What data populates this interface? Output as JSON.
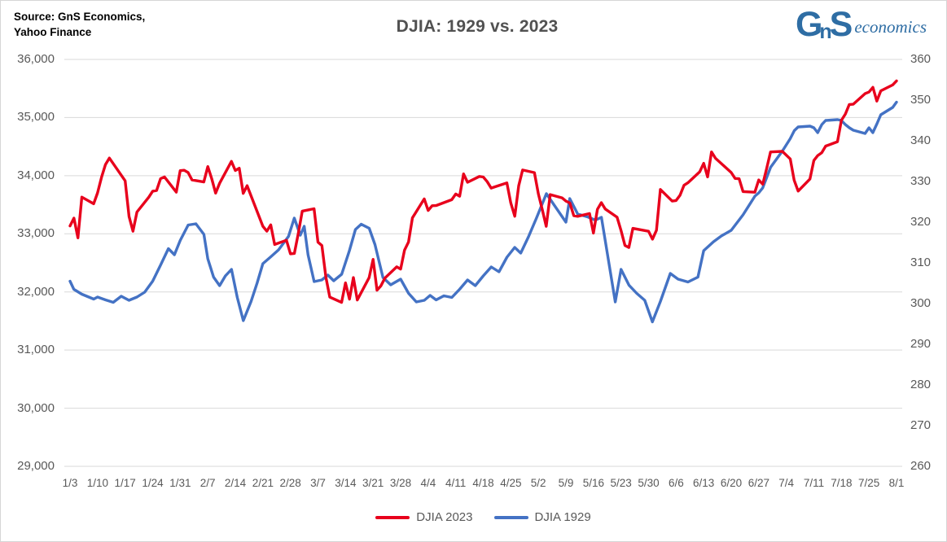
{
  "header": {
    "source_line1": "Source: GnS Economics,",
    "source_line2": "Yahoo Finance",
    "title": "DJIA: 1929 vs. 2023",
    "logo": {
      "g": "G",
      "n": "n",
      "s": "S",
      "word": "economics",
      "color": "#2e6da4"
    }
  },
  "colors": {
    "red_series": "#e8001c",
    "blue_series": "#4472c4",
    "gridline": "#d9d9d9",
    "axis_text": "#595959",
    "title_text": "#515151"
  },
  "chart_data": {
    "type": "line",
    "title": "DJIA: 1929 vs. 2023",
    "grid": "horizontal",
    "x_axis": {
      "tick_labels": [
        "1/3",
        "1/10",
        "1/17",
        "1/24",
        "1/31",
        "2/7",
        "2/14",
        "2/21",
        "2/28",
        "3/7",
        "3/14",
        "3/21",
        "3/28",
        "4/4",
        "4/11",
        "4/18",
        "4/25",
        "5/2",
        "5/9",
        "5/16",
        "5/23",
        "5/30",
        "6/6",
        "6/13",
        "6/20",
        "6/27",
        "7/4",
        "7/11",
        "7/18",
        "7/25",
        "8/1"
      ],
      "units": "weekly ticks, Jan 3 through Aug 1"
    },
    "y_axis_left": {
      "min": 29000,
      "max": 36000,
      "step": 1000,
      "tick_labels": [
        "36,000",
        "35,000",
        "34,000",
        "33,000",
        "32,000",
        "31,000",
        "30,000",
        "29,000"
      ],
      "series": "DJIA 2023"
    },
    "y_axis_right": {
      "min": 260,
      "max": 360,
      "step": 10,
      "tick_labels": [
        "360",
        "350",
        "340",
        "330",
        "320",
        "310",
        "300",
        "290",
        "280",
        "270",
        "260"
      ],
      "series": "DJIA 1929"
    },
    "legend": {
      "position": "bottom-center",
      "entries": [
        {
          "label": "DJIA 2023",
          "color": "#e8001c"
        },
        {
          "label": "DJIA 1929",
          "color": "#4472c4"
        }
      ]
    },
    "series": [
      {
        "name": "DJIA 2023",
        "axis": "left",
        "color": "#e8001c",
        "dates_2023": [
          "1/3",
          "1/4",
          "1/5",
          "1/6",
          "1/9",
          "1/10",
          "1/11",
          "1/12",
          "1/13",
          "1/17",
          "1/18",
          "1/19",
          "1/20",
          "1/23",
          "1/24",
          "1/25",
          "1/26",
          "1/27",
          "1/30",
          "1/31",
          "2/1",
          "2/2",
          "2/3",
          "2/6",
          "2/7",
          "2/8",
          "2/9",
          "2/10",
          "2/13",
          "2/14",
          "2/15",
          "2/16",
          "2/17",
          "2/21",
          "2/22",
          "2/23",
          "2/24",
          "2/27",
          "2/28",
          "3/1",
          "3/2",
          "3/3",
          "3/6",
          "3/7",
          "3/8",
          "3/9",
          "3/10",
          "3/13",
          "3/14",
          "3/15",
          "3/16",
          "3/17",
          "3/20",
          "3/21",
          "3/22",
          "3/23",
          "3/24",
          "3/27",
          "3/28",
          "3/29",
          "3/30",
          "3/31",
          "4/3",
          "4/4",
          "4/5",
          "4/6",
          "4/10",
          "4/11",
          "4/12",
          "4/13",
          "4/14",
          "4/17",
          "4/18",
          "4/19",
          "4/20",
          "4/21",
          "4/24",
          "4/25",
          "4/26",
          "4/27",
          "4/28",
          "5/1",
          "5/2",
          "5/3",
          "5/4",
          "5/5",
          "5/8",
          "5/9",
          "5/10",
          "5/11",
          "5/12",
          "5/15",
          "5/16",
          "5/17",
          "5/18",
          "5/19",
          "5/22",
          "5/23",
          "5/24",
          "5/25",
          "5/26",
          "5/30",
          "5/31",
          "6/1",
          "6/2",
          "6/5",
          "6/6",
          "6/7",
          "6/8",
          "6/9",
          "6/12",
          "6/13",
          "6/14",
          "6/15",
          "6/16",
          "6/20",
          "6/21",
          "6/22",
          "6/23",
          "6/26",
          "6/27",
          "6/28",
          "6/29",
          "6/30",
          "7/3",
          "7/5",
          "7/6",
          "7/7",
          "7/10",
          "7/11",
          "7/12",
          "7/13",
          "7/14",
          "7/17",
          "7/18",
          "7/19",
          "7/20",
          "7/21",
          "7/24",
          "7/25",
          "7/26",
          "7/27",
          "7/28",
          "7/31",
          "8/1"
        ],
        "values": [
          33136,
          33270,
          32930,
          33631,
          33517,
          33704,
          33973,
          34190,
          34303,
          33911,
          33297,
          33045,
          33375,
          33630,
          33734,
          33744,
          33949,
          33978,
          33717,
          34086,
          34093,
          34054,
          33926,
          33891,
          34156,
          33949,
          33700,
          33869,
          34246,
          34089,
          34128,
          33696,
          33827,
          33130,
          33045,
          33154,
          32817,
          32889,
          32656,
          32662,
          33003,
          33391,
          33431,
          32856,
          32798,
          32255,
          31910,
          31819,
          32155,
          31875,
          32247,
          31862,
          32245,
          32560,
          32030,
          32105,
          32238,
          32432,
          32394,
          32718,
          32859,
          33274,
          33601,
          33402,
          33483,
          33485,
          33586,
          33685,
          33646,
          34030,
          33886,
          33987,
          33977,
          33897,
          33786,
          33809,
          33875,
          33531,
          33302,
          33826,
          34098,
          34052,
          33685,
          33414,
          33128,
          33674,
          33619,
          33562,
          33531,
          33310,
          33301,
          33349,
          33012,
          33421,
          33536,
          33427,
          33286,
          33056,
          32800,
          32765,
          33093,
          33043,
          32908,
          33062,
          33763,
          33562,
          33573,
          33665,
          33834,
          33877,
          34066,
          34212,
          33979,
          34408,
          34299,
          34054,
          33952,
          33947,
          33727,
          33715,
          33926,
          33852,
          34122,
          34408,
          34418,
          34288,
          33922,
          33735,
          33944,
          34261,
          34347,
          34395,
          34509,
          34585,
          34951,
          35061,
          35225,
          35228,
          35411,
          35438,
          35520,
          35283,
          35459,
          35560,
          35630
        ]
      },
      {
        "name": "DJIA 1929",
        "axis": "right",
        "color": "#4472c4",
        "points_week_units": [
          [
            0,
            305.5
          ],
          [
            0.14,
            303.5
          ],
          [
            0.43,
            302.3
          ],
          [
            0.86,
            301.1
          ],
          [
            1,
            301.6
          ],
          [
            1.29,
            300.9
          ],
          [
            1.57,
            300.3
          ],
          [
            1.86,
            301.8
          ],
          [
            2.14,
            300.8
          ],
          [
            2.43,
            301.6
          ],
          [
            2.71,
            302.8
          ],
          [
            3,
            305.5
          ],
          [
            3.29,
            309.5
          ],
          [
            3.57,
            313.5
          ],
          [
            3.79,
            312
          ],
          [
            4,
            315.5
          ],
          [
            4.29,
            319.3
          ],
          [
            4.57,
            319.6
          ],
          [
            4.86,
            317
          ],
          [
            5,
            311
          ],
          [
            5.21,
            306.5
          ],
          [
            5.43,
            304.4
          ],
          [
            5.64,
            306.8
          ],
          [
            5.86,
            308.4
          ],
          [
            6.07,
            301.5
          ],
          [
            6.29,
            295.8
          ],
          [
            6.57,
            300.5
          ],
          [
            6.79,
            305
          ],
          [
            7,
            309.8
          ],
          [
            7.29,
            311.5
          ],
          [
            7.57,
            313.2
          ],
          [
            7.93,
            316.5
          ],
          [
            8.14,
            321
          ],
          [
            8.36,
            316.8
          ],
          [
            8.5,
            319
          ],
          [
            8.64,
            312
          ],
          [
            8.86,
            305.4
          ],
          [
            9.14,
            305.8
          ],
          [
            9.36,
            307
          ],
          [
            9.57,
            305.6
          ],
          [
            9.86,
            307.2
          ],
          [
            10.14,
            313
          ],
          [
            10.36,
            318.2
          ],
          [
            10.57,
            319.5
          ],
          [
            10.86,
            318.5
          ],
          [
            11.07,
            314.5
          ],
          [
            11.36,
            306.4
          ],
          [
            11.64,
            304.6
          ],
          [
            12,
            306
          ],
          [
            12.29,
            302.5
          ],
          [
            12.57,
            300.4
          ],
          [
            12.86,
            300.8
          ],
          [
            13.07,
            302
          ],
          [
            13.29,
            300.9
          ],
          [
            13.57,
            301.9
          ],
          [
            13.86,
            301.5
          ],
          [
            14.14,
            303.5
          ],
          [
            14.43,
            305.8
          ],
          [
            14.71,
            304.4
          ],
          [
            15,
            306.8
          ],
          [
            15.29,
            309
          ],
          [
            15.57,
            307.8
          ],
          [
            15.86,
            311.4
          ],
          [
            16.14,
            313.8
          ],
          [
            16.36,
            312.4
          ],
          [
            16.64,
            316.4
          ],
          [
            16.93,
            321
          ],
          [
            17.29,
            327
          ],
          [
            18,
            320
          ],
          [
            18.14,
            325.8
          ],
          [
            18.43,
            322
          ],
          [
            18.79,
            321.3
          ],
          [
            19.07,
            320.5
          ],
          [
            19.29,
            321.2
          ],
          [
            19.79,
            300.4
          ],
          [
            20,
            308.4
          ],
          [
            20.29,
            304.5
          ],
          [
            20.57,
            302.5
          ],
          [
            20.86,
            300.8
          ],
          [
            21.14,
            295.5
          ],
          [
            21.43,
            300.5
          ],
          [
            21.79,
            307.4
          ],
          [
            22.07,
            306
          ],
          [
            22.43,
            305.3
          ],
          [
            22.79,
            306.5
          ],
          [
            23,
            313
          ],
          [
            23.36,
            315.2
          ],
          [
            23.64,
            316.6
          ],
          [
            24,
            318
          ],
          [
            24.43,
            321.8
          ],
          [
            24.86,
            326.4
          ],
          [
            25,
            327.2
          ],
          [
            25.14,
            328.4
          ],
          [
            25.29,
            331
          ],
          [
            25.43,
            333.5
          ],
          [
            25.86,
            337.5
          ],
          [
            26.14,
            340.5
          ],
          [
            26.29,
            342.5
          ],
          [
            26.43,
            343.4
          ],
          [
            26.86,
            343.6
          ],
          [
            27,
            343.2
          ],
          [
            27.14,
            342
          ],
          [
            27.29,
            344
          ],
          [
            27.43,
            345
          ],
          [
            27.86,
            345.2
          ],
          [
            28,
            345
          ],
          [
            28.14,
            344
          ],
          [
            28.29,
            343.2
          ],
          [
            28.43,
            342.6
          ],
          [
            28.86,
            341.8
          ],
          [
            29,
            343.2
          ],
          [
            29.14,
            342
          ],
          [
            29.29,
            344.2
          ],
          [
            29.43,
            346.4
          ],
          [
            29.86,
            348.2
          ],
          [
            30,
            349.5
          ]
        ]
      }
    ]
  }
}
